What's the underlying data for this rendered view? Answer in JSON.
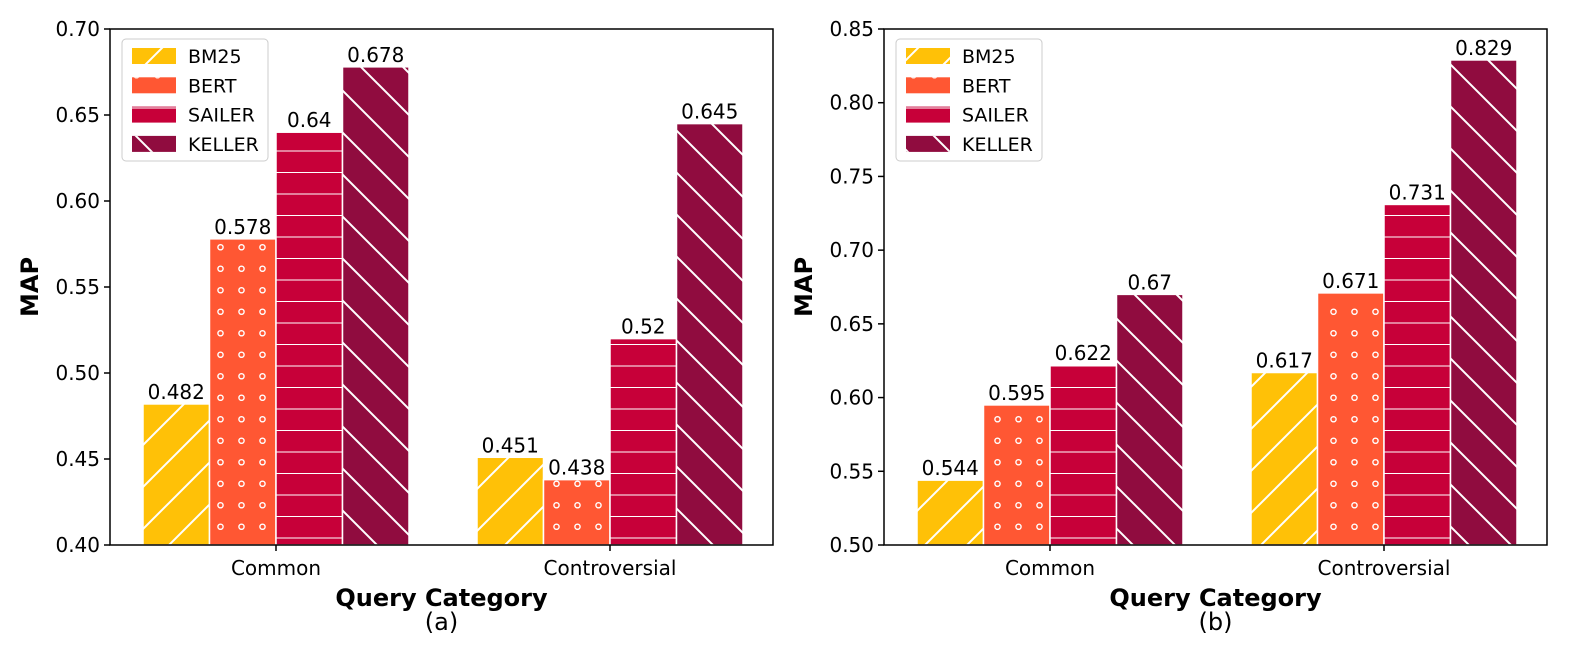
{
  "chart_data": [
    {
      "type": "bar",
      "caption": "(a)",
      "xlabel": "Query Category",
      "ylabel": "MAP",
      "categories": [
        "Common",
        "Controversial"
      ],
      "ylim": [
        0.4,
        0.7
      ],
      "yticks": [
        0.4,
        0.45,
        0.5,
        0.55,
        0.6,
        0.65,
        0.7
      ],
      "legend_position": "top-left",
      "grid": false,
      "series": [
        {
          "name": "BM25",
          "values": [
            0.482,
            0.451
          ],
          "labels": [
            "0.482",
            "0.451"
          ],
          "color": "#FFC107",
          "pattern": "diag-forward"
        },
        {
          "name": "BERT",
          "values": [
            0.578,
            0.438
          ],
          "labels": [
            "0.578",
            "0.438"
          ],
          "color": "#FF5733",
          "pattern": "dots"
        },
        {
          "name": "SAILER",
          "values": [
            0.64,
            0.52
          ],
          "labels": [
            "0.64",
            "0.52"
          ],
          "color": "#C70039",
          "pattern": "horizontal"
        },
        {
          "name": "KELLER",
          "values": [
            0.678,
            0.645
          ],
          "labels": [
            "0.678",
            "0.645"
          ],
          "color": "#900C3F",
          "pattern": "diag-back"
        }
      ]
    },
    {
      "type": "bar",
      "caption": "(b)",
      "xlabel": "Query Category",
      "ylabel": "MAP",
      "categories": [
        "Common",
        "Controversial"
      ],
      "ylim": [
        0.5,
        0.85
      ],
      "yticks": [
        0.5,
        0.55,
        0.6,
        0.65,
        0.7,
        0.75,
        0.8,
        0.85
      ],
      "legend_position": "top-left",
      "grid": false,
      "series": [
        {
          "name": "BM25",
          "values": [
            0.544,
            0.617
          ],
          "labels": [
            "0.544",
            "0.617"
          ],
          "color": "#FFC107",
          "pattern": "diag-forward"
        },
        {
          "name": "BERT",
          "values": [
            0.595,
            0.671
          ],
          "labels": [
            "0.595",
            "0.671"
          ],
          "color": "#FF5733",
          "pattern": "dots"
        },
        {
          "name": "SAILER",
          "values": [
            0.622,
            0.731
          ],
          "labels": [
            "0.622",
            "0.731"
          ],
          "color": "#C70039",
          "pattern": "horizontal"
        },
        {
          "name": "KELLER",
          "values": [
            0.67,
            0.829
          ],
          "labels": [
            "0.67",
            "0.829"
          ],
          "color": "#900C3F",
          "pattern": "diag-back"
        }
      ]
    }
  ]
}
